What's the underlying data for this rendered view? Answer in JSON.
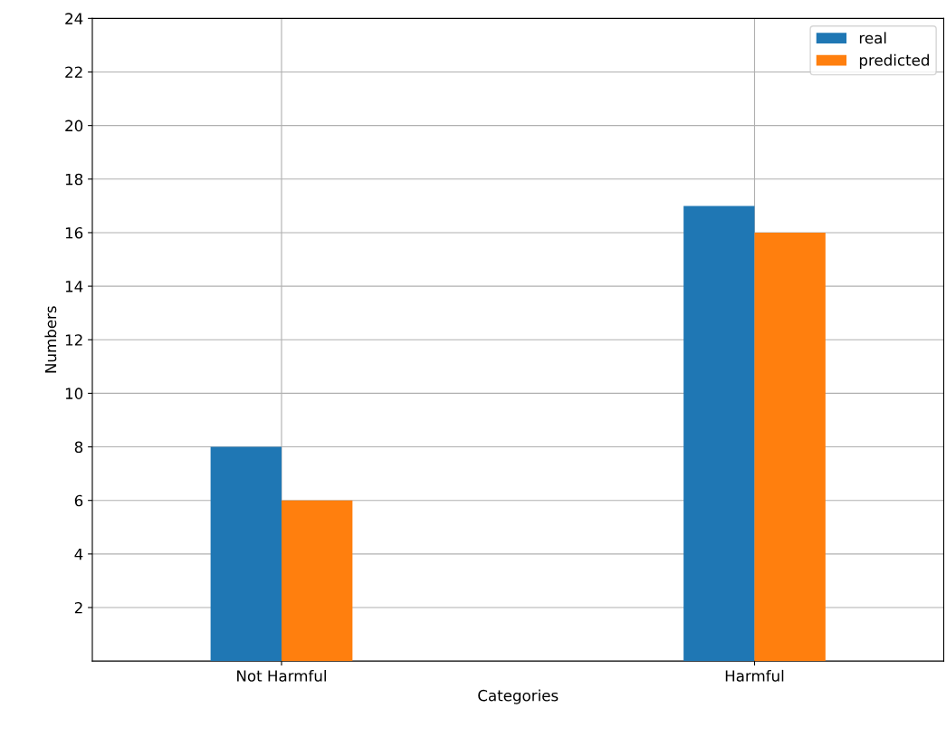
{
  "chart_data": {
    "type": "bar",
    "xlabel": "Categories",
    "ylabel": "Numbers",
    "categories": [
      "Not Harmful",
      "Harmful"
    ],
    "series": [
      {
        "name": "real",
        "color": "#1f77b4",
        "values": [
          8,
          17
        ]
      },
      {
        "name": "predicted",
        "color": "#ff7f0e",
        "values": [
          6,
          16
        ]
      }
    ],
    "ylim": [
      0,
      24
    ],
    "yticks": [
      2,
      4,
      6,
      8,
      10,
      12,
      14,
      16,
      18,
      20,
      22,
      24
    ],
    "grid": true,
    "legend": "top right"
  }
}
